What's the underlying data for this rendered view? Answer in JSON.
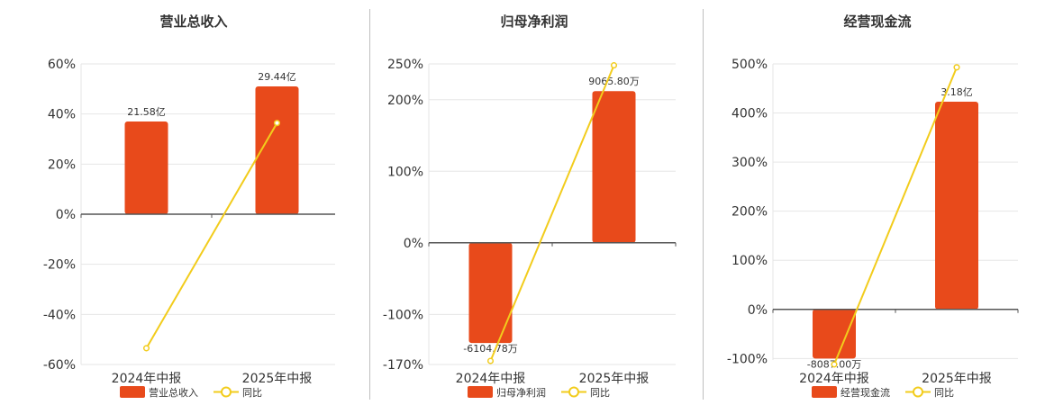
{
  "colors": {
    "bar": "#E84A1B",
    "line": "#F2CC1C",
    "grid": "#e6e6e6",
    "axis": "#555555"
  },
  "panels": [
    {
      "title": "营业总收入",
      "legend": {
        "bar_label": "营业总收入",
        "line_label": "同比"
      },
      "chart_data": {
        "type": "bar+line",
        "categories": [
          "2024年中报",
          "2025年中报"
        ],
        "bar_values_pct": [
          37,
          51
        ],
        "bar_labels": [
          "21.58亿",
          "29.44亿"
        ],
        "line_values_pct": [
          -53.5,
          36.4
        ],
        "ylim": [
          -60,
          60
        ],
        "ticks": [
          -60,
          -40,
          -20,
          0,
          20,
          40,
          60
        ],
        "tick_labels": [
          "-60%",
          "-40%",
          "-20%",
          "0%",
          "20%",
          "40%",
          "60%"
        ],
        "grid": true
      }
    },
    {
      "title": "归母净利润",
      "legend": {
        "bar_label": "归母净利润",
        "line_label": "同比"
      },
      "chart_data": {
        "type": "bar+line",
        "categories": [
          "2024年中报",
          "2025年中报"
        ],
        "bar_values_pct": [
          -140,
          212
        ],
        "bar_labels": [
          "-6104.78万",
          "9065.80万"
        ],
        "line_values_pct": [
          -165,
          248
        ],
        "ylim": [
          -170,
          250
        ],
        "ticks": [
          -170,
          -100,
          0,
          100,
          200,
          250
        ],
        "tick_labels": [
          "-170%",
          "-100%",
          "0%",
          "100%",
          "200%",
          "250%"
        ],
        "grid": true
      }
    },
    {
      "title": "经营现金流",
      "legend": {
        "bar_label": "经营现金流",
        "line_label": "同比"
      },
      "chart_data": {
        "type": "bar+line",
        "categories": [
          "2024年中报",
          "2025年中报"
        ],
        "bar_values_pct": [
          -100,
          423
        ],
        "bar_labels": [
          "-8087.00万",
          "3.18亿"
        ],
        "line_values_pct": [
          -112,
          493
        ],
        "ylim": [
          -103,
          500
        ],
        "ticks": [
          -100,
          0,
          100,
          200,
          300,
          400,
          500
        ],
        "tick_labels": [
          "-100%",
          "0%",
          "100%",
          "200%",
          "300%",
          "400%",
          "500%"
        ],
        "grid": true
      }
    }
  ]
}
